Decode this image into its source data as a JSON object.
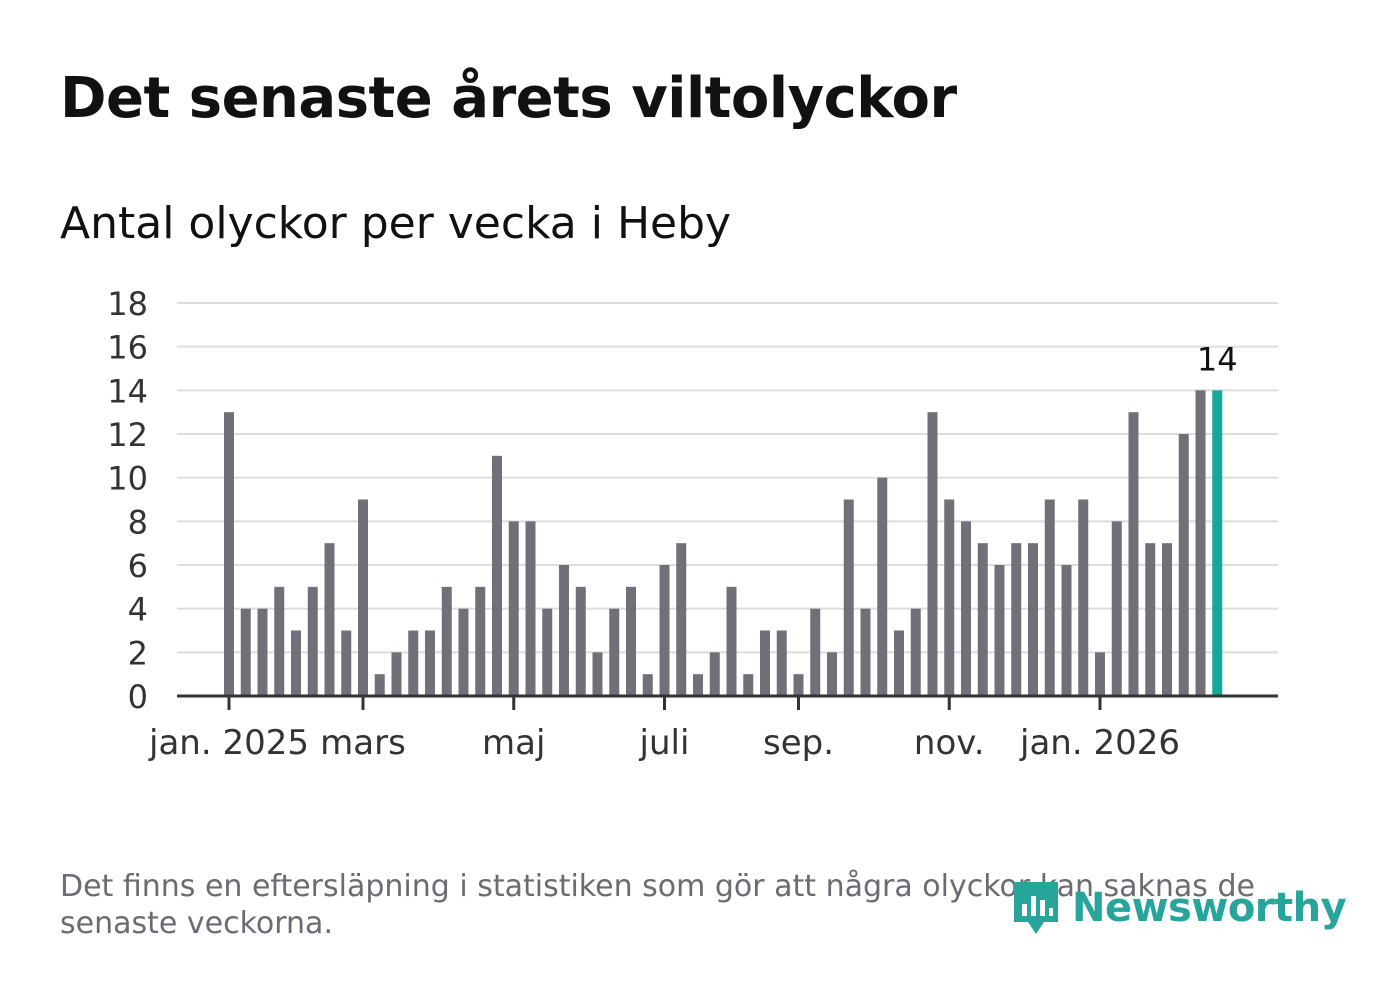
{
  "title": "Det senaste årets viltolyckor",
  "subtitle": "Antal olyckor per vecka i Heby",
  "footnote": "Det finns en eftersläpning i statistiken som gör att några olyckor kan saknas de senaste veckorna.",
  "brand": {
    "name": "Newsworthy",
    "color": "#27a59a"
  },
  "colors": {
    "bar": "#707078",
    "highlight": "#14a89a",
    "grid": "#dddddd",
    "axis": "#333333",
    "text": "#333333"
  },
  "chart_data": {
    "type": "bar",
    "title": "Antal olyckor per vecka i Heby",
    "xlabel": "",
    "ylabel": "",
    "ylim": [
      0,
      18
    ],
    "yticks": [
      "0",
      "2",
      "4",
      "6",
      "8",
      "10",
      "12",
      "14",
      "16",
      "18"
    ],
    "xticks": [
      {
        "label": "jan. 2025",
        "index": 0
      },
      {
        "label": "mars",
        "index": 8
      },
      {
        "label": "maj",
        "index": 17
      },
      {
        "label": "juli",
        "index": 26
      },
      {
        "label": "sep.",
        "index": 34
      },
      {
        "label": "nov.",
        "index": 43
      },
      {
        "label": "jan. 2026",
        "index": 52
      }
    ],
    "values": [
      13,
      4,
      4,
      5,
      3,
      5,
      7,
      3,
      9,
      1,
      2,
      3,
      3,
      5,
      4,
      5,
      11,
      8,
      8,
      4,
      6,
      5,
      2,
      4,
      5,
      1,
      6,
      7,
      1,
      2,
      5,
      1,
      3,
      3,
      1,
      4,
      2,
      9,
      4,
      10,
      3,
      4,
      13,
      9,
      8,
      7,
      6,
      7,
      7,
      9,
      6,
      9,
      2,
      8,
      13,
      7,
      7,
      12,
      14,
      14
    ],
    "highlight_index": 59,
    "highlight_label": "14",
    "grid": true,
    "legend": "none"
  }
}
